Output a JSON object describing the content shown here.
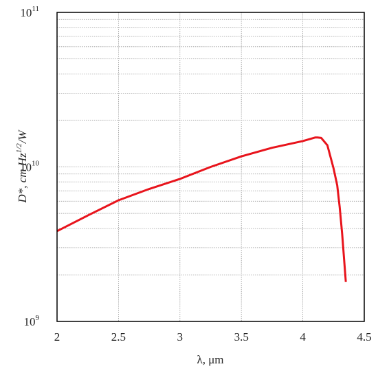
{
  "chart_data": {
    "type": "line",
    "x_label": "λ, μm",
    "y_label": {
      "text": "D*, cm Hz",
      "superscript": "1/2",
      "suffix": "/W"
    },
    "log_y": true,
    "grid": true,
    "minor_grid": true,
    "xlim": [
      2,
      4.5
    ],
    "xticks": [
      2,
      2.5,
      3,
      3.5,
      4,
      4.5
    ],
    "ylim": [
      1000000000,
      100000000000
    ],
    "yticks": [
      {
        "value": 1000000000,
        "label": "10",
        "superscript": "9"
      },
      {
        "value": 10000000000,
        "label": "10",
        "superscript": "10"
      },
      {
        "value": 100000000000,
        "label": "10",
        "superscript": "11"
      }
    ],
    "x": [
      2,
      2.25,
      2.5,
      2.75,
      3,
      3.25,
      3.5,
      3.75,
      4,
      4.1,
      4.12,
      4.15,
      4.2,
      4.25,
      4.28,
      4.3,
      4.32,
      4.35
    ],
    "series": [
      {
        "color": "#e8141c",
        "values": [
          3840000000,
          4850000000,
          6080000000,
          7200000000,
          8360000000,
          10000000000,
          11700000000,
          13300000000,
          14700000000,
          15500000000,
          15500000000,
          15400000000,
          13800000000,
          9800000000,
          7600000000,
          5500000000,
          3700000000,
          1800000000
        ]
      }
    ]
  }
}
